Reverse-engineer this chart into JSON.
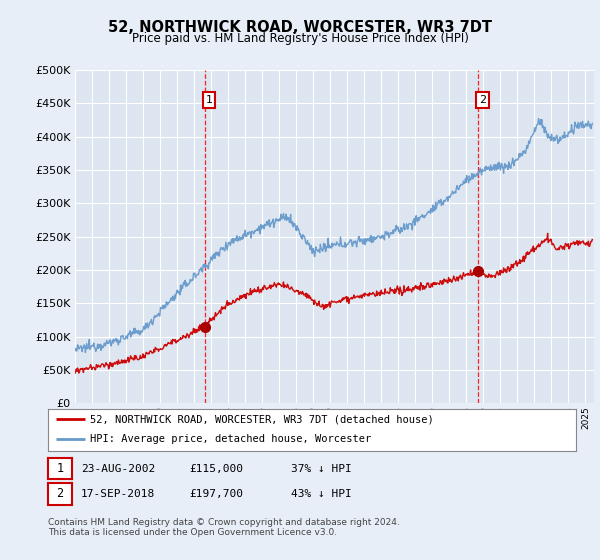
{
  "title": "52, NORTHWICK ROAD, WORCESTER, WR3 7DT",
  "subtitle": "Price paid vs. HM Land Registry's House Price Index (HPI)",
  "background_color": "#e8eef8",
  "plot_bg_color": "#dde6f0",
  "legend1": "52, NORTHWICK ROAD, WORCESTER, WR3 7DT (detached house)",
  "legend2": "HPI: Average price, detached house, Worcester",
  "footnote": "Contains HM Land Registry data © Crown copyright and database right 2024.\nThis data is licensed under the Open Government Licence v3.0.",
  "ylim": [
    0,
    500000
  ],
  "yticks": [
    0,
    50000,
    100000,
    150000,
    200000,
    250000,
    300000,
    350000,
    400000,
    450000,
    500000
  ],
  "hpi_color": "#6699cc",
  "price_color": "#cc0000",
  "marker1_x": 2002.615,
  "marker1_y": 115000,
  "marker2_x": 2018.71,
  "marker2_y": 197700,
  "table_row1": [
    "1",
    "23-AUG-2002",
    "£115,000",
    "37% ↓ HPI"
  ],
  "table_row2": [
    "2",
    "17-SEP-2018",
    "£197,700",
    "43% ↓ HPI"
  ],
  "xmin": 1995,
  "xmax": 2025.5
}
